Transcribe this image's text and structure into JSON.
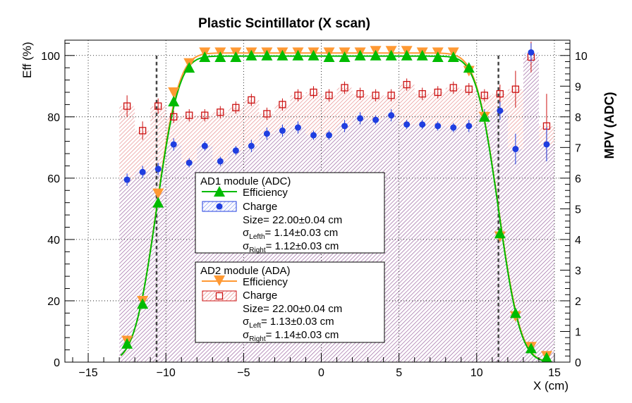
{
  "chart_data": {
    "type": "scatter",
    "title": "Plastic Scintillator (X scan)",
    "xlabel": "X (cm)",
    "ylabel": "Eff (%)",
    "y2label": "MPV (ADC)",
    "xlim": [
      -16.5,
      16
    ],
    "ylim": [
      0,
      105
    ],
    "y2lim": [
      0,
      10.5
    ],
    "x_ticks": [
      "−15",
      "−10",
      "−5",
      "0",
      "5",
      "10",
      "15"
    ],
    "x_tick_values": [
      -15,
      -10,
      -5,
      0,
      5,
      10,
      15
    ],
    "y_ticks": [
      "0",
      "20",
      "40",
      "60",
      "80",
      "100"
    ],
    "y_tick_values": [
      0,
      20,
      40,
      60,
      80,
      100
    ],
    "y2_ticks": [
      "0",
      "1",
      "2",
      "3",
      "4",
      "5",
      "6",
      "7",
      "8",
      "9",
      "10"
    ],
    "y2_tick_values": [
      0,
      1,
      2,
      3,
      4,
      5,
      6,
      7,
      8,
      9,
      10
    ],
    "grid": true,
    "edge_lines_x": [
      -10.6,
      11.4
    ],
    "x": [
      -12.5,
      -11.5,
      -10.5,
      -9.5,
      -8.5,
      -7.5,
      -6.5,
      -5.5,
      -4.5,
      -3.5,
      -2.5,
      -1.5,
      -0.5,
      0.5,
      1.5,
      2.5,
      3.5,
      4.5,
      5.5,
      6.5,
      7.5,
      8.5,
      9.5,
      10.5,
      11.5,
      12.5,
      13.5,
      14.5
    ],
    "series": [
      {
        "axis": "left",
        "values": [
          6,
          19,
          52,
          85,
          96,
          99.5,
          99.5,
          99.5,
          100,
          100,
          100,
          100,
          100,
          99.5,
          99.5,
          100,
          100,
          100,
          100,
          100,
          99.5,
          99.5,
          96,
          80,
          42,
          16,
          4.5,
          1.5
        ],
        "color": "#00bb00",
        "marker": "triangle-up"
      },
      {
        "axis": "left",
        "values": [
          7,
          20,
          55,
          88,
          97.5,
          101,
          101,
          101,
          101,
          101,
          101,
          101,
          101,
          101,
          101,
          101,
          101.5,
          101.5,
          101.5,
          101,
          101,
          101,
          95,
          80,
          41,
          15,
          5,
          2
        ],
        "color": "#ff9933",
        "marker": "triangle-down"
      },
      {
        "axis": "right",
        "values": [
          5.95,
          6.2,
          6.3,
          7.1,
          6.5,
          7.05,
          6.55,
          6.9,
          7.05,
          7.45,
          7.55,
          7.65,
          7.4,
          7.4,
          7.7,
          7.95,
          7.9,
          8.05,
          7.75,
          7.75,
          7.7,
          7.65,
          7.7,
          8.05,
          8.2,
          6.95,
          10.1,
          7.1
        ],
        "errors": [
          0.2,
          0.2,
          0.2,
          0.2,
          0.15,
          0.15,
          0.15,
          0.15,
          0.2,
          0.2,
          0.2,
          0.2,
          0.15,
          0.15,
          0.2,
          0.2,
          0.15,
          0.2,
          0.15,
          0.15,
          0.15,
          0.15,
          0.2,
          0.2,
          0.3,
          0.5,
          0.3,
          0.55
        ],
        "color": "#1f3ee0",
        "marker": "circle",
        "fill": "#1f3ee0"
      },
      {
        "axis": "right",
        "values": [
          8.35,
          7.55,
          8.35,
          8.0,
          8.05,
          8.05,
          8.15,
          8.3,
          8.55,
          8.1,
          8.4,
          8.7,
          8.8,
          8.7,
          8.95,
          8.75,
          8.7,
          8.7,
          9.05,
          8.75,
          8.8,
          8.95,
          8.9,
          8.7,
          8.75,
          8.9,
          9.95,
          7.7
        ],
        "errors": [
          0.35,
          0.3,
          0.25,
          0.2,
          0.2,
          0.2,
          0.2,
          0.2,
          0.2,
          0.2,
          0.2,
          0.2,
          0.2,
          0.2,
          0.2,
          0.2,
          0.2,
          0.2,
          0.2,
          0.2,
          0.2,
          0.2,
          0.2,
          0.2,
          0.3,
          0.6,
          0.5,
          1.05
        ],
        "color": "#cc1111",
        "marker": "open-square",
        "fill": "#cc1111"
      }
    ],
    "legends": [
      {
        "header": "AD1 module (ADC)",
        "entries": [
          "Efficiency",
          "Charge"
        ],
        "size_text": "Size= 22.00±0.04 cm",
        "sig_left_sub": "Lefth",
        "sig_left_val": "= 1.14±0.03 cm",
        "sig_right_sub": "Right",
        "sig_right_val": "= 1.12±0.03 cm",
        "sigma": "σ",
        "eff_color": "#00bb00",
        "charge_color": "#1f3ee0"
      },
      {
        "header": "AD2 module (ADA)",
        "entries": [
          "Efficiency",
          "Charge"
        ],
        "size_text": "Size= 22.00±0.04 cm",
        "sig_left_sub": "Left",
        "sig_left_val": "= 1.13±0.03 cm",
        "sig_right_sub": "Right",
        "sig_right_val": "= 1.14±0.03 cm",
        "sigma": "σ",
        "eff_color": "#ff9933",
        "charge_color": "#cc1111"
      }
    ]
  }
}
